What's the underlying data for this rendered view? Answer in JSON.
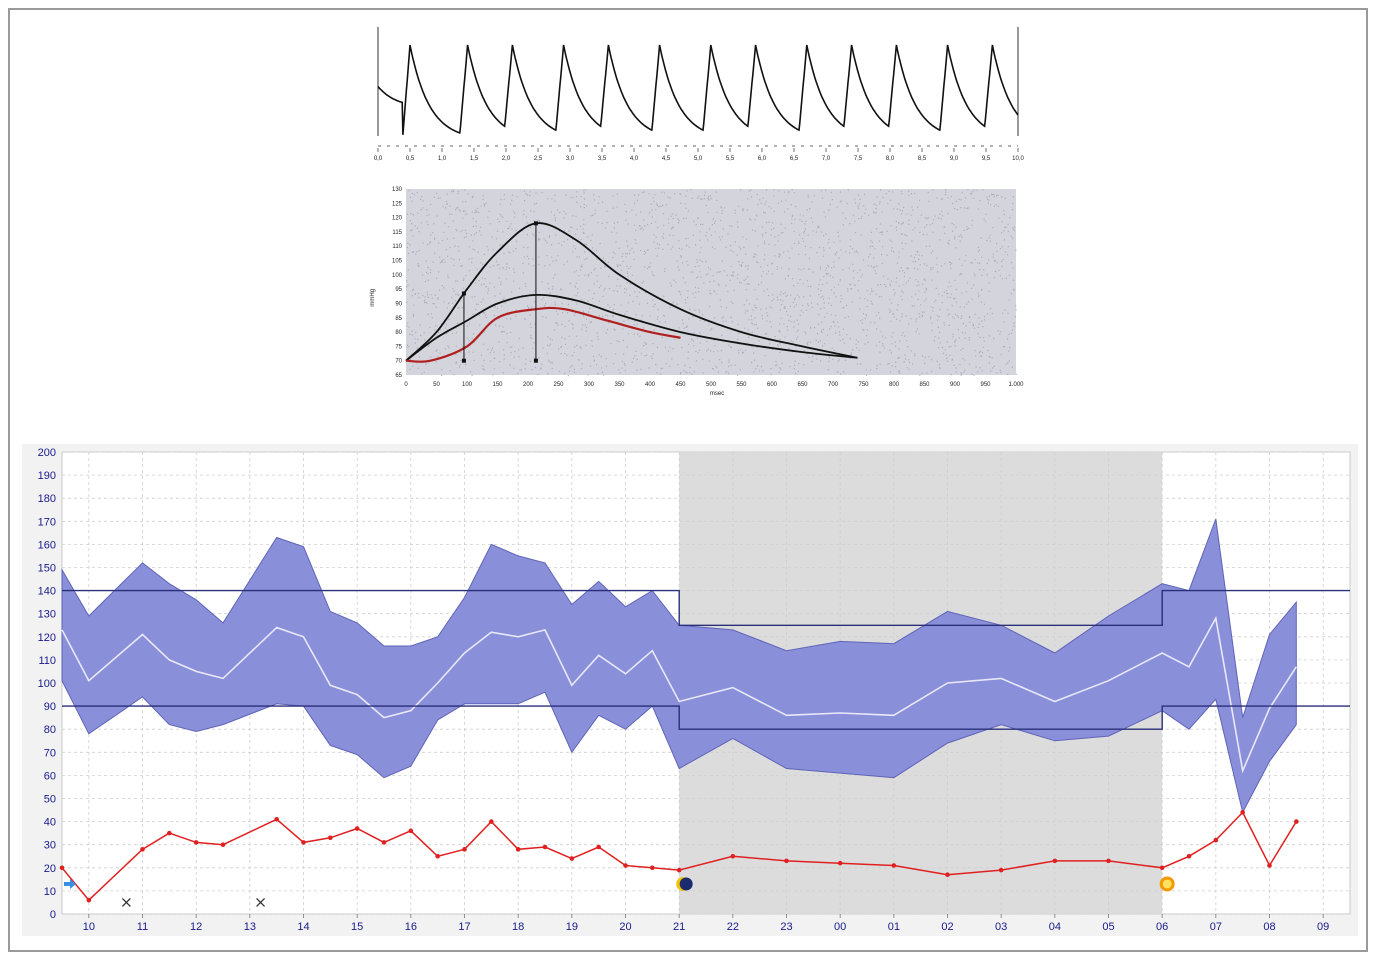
{
  "chart_data": [
    {
      "type": "line",
      "title": "",
      "x_ticks": [
        "0,0",
        "0,5",
        "1,0",
        "1,5",
        "2,0",
        "2,5",
        "3,0",
        "3,5",
        "4,0",
        "4,5",
        "5,0",
        "5,5",
        "6,0",
        "6,5",
        "7,0",
        "7,5",
        "8,0",
        "8,5",
        "9,0",
        "9,5",
        "10,0"
      ],
      "xlim": [
        0,
        10
      ],
      "beats_peak_times": [
        0.5,
        1.4,
        2.1,
        2.9,
        3.6,
        4.4,
        5.2,
        5.9,
        6.7,
        7.4,
        8.1,
        8.9,
        9.6
      ],
      "line_color": "#111111",
      "grid": false
    },
    {
      "type": "line",
      "xlabel": "msec",
      "ylabel": "mmHg",
      "x_ticks": [
        "0",
        "50",
        "100",
        "150",
        "200",
        "250",
        "300",
        "350",
        "400",
        "450",
        "500",
        "550",
        "600",
        "650",
        "700",
        "750",
        "800",
        "850",
        "900",
        "950",
        "1.000"
      ],
      "y_ticks": [
        "65",
        "70",
        "75",
        "80",
        "85",
        "90",
        "95",
        "100",
        "105",
        "110",
        "115",
        "120",
        "125",
        "130"
      ],
      "xlim": [
        0,
        1000
      ],
      "ylim": [
        65,
        130
      ],
      "series": [
        {
          "x": [
            0,
            50,
            100,
            150,
            213,
            280,
            350,
            450,
            550,
            650,
            740
          ],
          "y": [
            70,
            80,
            95,
            108,
            118,
            112,
            100,
            88,
            80,
            75,
            71
          ]
        },
        {
          "x": [
            0,
            50,
            100,
            150,
            213,
            280,
            350,
            450,
            550,
            650,
            740
          ],
          "y": [
            70,
            78,
            84,
            90,
            93,
            91,
            86,
            80,
            76,
            73,
            71
          ]
        },
        {
          "x": [
            0,
            40,
            100,
            150,
            213,
            260,
            330,
            400,
            450
          ],
          "y": [
            70,
            70,
            75,
            85,
            88,
            88,
            84,
            80,
            78
          ]
        }
      ],
      "markers_x": [
        95,
        213
      ],
      "colors": {
        "curve": "#111111",
        "lower_curve": "#b02020",
        "background": "#d4d4dc"
      },
      "grid": false
    },
    {
      "type": "area",
      "title": "",
      "categories": [
        "10",
        "11",
        "12",
        "13",
        "14",
        "15",
        "16",
        "17",
        "18",
        "19",
        "20",
        "21",
        "22",
        "23",
        "00",
        "01",
        "02",
        "03",
        "04",
        "05",
        "06",
        "07",
        "08",
        "09"
      ],
      "y_ticks": [
        "0",
        "10",
        "20",
        "30",
        "40",
        "50",
        "60",
        "70",
        "80",
        "90",
        "100",
        "110",
        "120",
        "130",
        "140",
        "150",
        "160",
        "170",
        "180",
        "190",
        "200"
      ],
      "ylim": [
        0,
        200
      ],
      "xlim": [
        9.5,
        33.5
      ],
      "night_band": [
        21,
        30
      ],
      "thresholds": {
        "upper": [
          {
            "x": 9.5,
            "y": 140
          },
          {
            "x": 21,
            "y": 140
          },
          {
            "x": 21,
            "y": 125
          },
          {
            "x": 30,
            "y": 125
          },
          {
            "x": 30,
            "y": 140
          },
          {
            "x": 33.5,
            "y": 140
          }
        ],
        "lower": [
          {
            "x": 9.5,
            "y": 90
          },
          {
            "x": 21,
            "y": 90
          },
          {
            "x": 21,
            "y": 80
          },
          {
            "x": 30,
            "y": 80
          },
          {
            "x": 30,
            "y": 90
          },
          {
            "x": 33.5,
            "y": 90
          }
        ]
      },
      "systolic": {
        "x": [
          9.5,
          10,
          11,
          11.5,
          12,
          12.5,
          13.5,
          14,
          14.5,
          15,
          15.5,
          16,
          16.5,
          17,
          17.5,
          18,
          18.5,
          19,
          19.5,
          20,
          20.5,
          21,
          22,
          23,
          24,
          25,
          26,
          27,
          28,
          29,
          30,
          30.5,
          31,
          31.5,
          32,
          32.5
        ],
        "y": [
          149,
          129,
          152,
          143,
          136,
          126,
          163,
          159,
          131,
          126,
          116,
          116,
          120,
          137,
          160,
          155,
          152,
          134,
          144,
          133,
          140,
          125,
          123,
          114,
          118,
          117,
          131,
          125,
          113,
          129,
          143,
          140,
          171,
          85,
          121,
          135
        ]
      },
      "mean": {
        "x": [
          9.5,
          10,
          11,
          11.5,
          12,
          12.5,
          13.5,
          14,
          14.5,
          15,
          15.5,
          16,
          16.5,
          17,
          17.5,
          18,
          18.5,
          19,
          19.5,
          20,
          20.5,
          21,
          22,
          23,
          24,
          25,
          26,
          27,
          28,
          29,
          30,
          30.5,
          31,
          31.5,
          32,
          32.5
        ],
        "y": [
          123,
          101,
          121,
          110,
          105,
          102,
          124,
          120,
          99,
          95,
          85,
          88,
          100,
          113,
          122,
          120,
          123,
          99,
          112,
          104,
          114,
          92,
          98,
          86,
          87,
          86,
          100,
          102,
          92,
          101,
          113,
          107,
          128,
          62,
          89,
          107
        ]
      },
      "diastolic": {
        "x": [
          9.5,
          10,
          11,
          11.5,
          12,
          12.5,
          13.5,
          14,
          14.5,
          15,
          15.5,
          16,
          16.5,
          17,
          17.5,
          18,
          18.5,
          19,
          19.5,
          20,
          20.5,
          21,
          22,
          23,
          24,
          25,
          26,
          27,
          28,
          29,
          30,
          30.5,
          31,
          31.5,
          32,
          32.5
        ],
        "y": [
          101,
          78,
          94,
          82,
          79,
          82,
          91,
          90,
          73,
          69,
          59,
          64,
          84,
          91,
          91,
          91,
          96,
          70,
          86,
          80,
          90,
          63,
          76,
          63,
          61,
          59,
          74,
          82,
          75,
          77,
          88,
          80,
          93,
          44,
          66,
          82
        ]
      },
      "heart_rate": {
        "x": [
          9.5,
          10,
          11,
          11.5,
          12,
          12.5,
          13.5,
          14,
          14.5,
          15,
          15.5,
          16,
          16.5,
          17,
          17.5,
          18,
          18.5,
          19,
          19.5,
          20,
          20.5,
          21,
          22,
          23,
          24,
          25,
          26,
          27,
          28,
          29,
          30,
          30.5,
          31,
          31.5,
          32,
          32.5
        ],
        "y": [
          20,
          6,
          28,
          35,
          31,
          30,
          41,
          31,
          33,
          37,
          31,
          36,
          25,
          28,
          40,
          28,
          29,
          24,
          29,
          21,
          20,
          19,
          25,
          23,
          22,
          21,
          17,
          19,
          23,
          23,
          20,
          25,
          32,
          44,
          21,
          40
        ]
      },
      "x_markers": [
        10.7,
        13.2
      ],
      "colors": {
        "band": "#8a8fd9",
        "band_stroke": "#5f64b8",
        "mean": "#e8e8f8",
        "threshold": "#2a2f7a",
        "heart_rate": "#e02020",
        "night": "#dcdcdc",
        "moon": "#1c2a6e",
        "sun": "#f5b800",
        "arrow": "#3b8ee0"
      },
      "grid": true
    }
  ]
}
